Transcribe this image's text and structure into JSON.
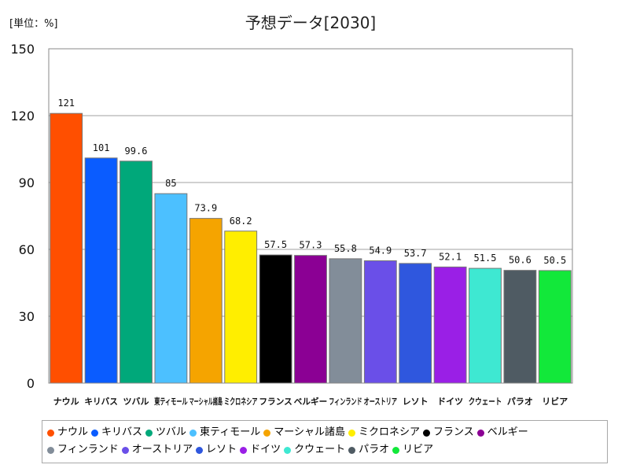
{
  "chart_data": {
    "type": "bar",
    "title": "予想データ[2030]",
    "unit_label": "[単位：%]",
    "xlabel": "",
    "ylabel": "",
    "ylim": [
      0,
      150
    ],
    "yticks": [
      0,
      30,
      60,
      90,
      120,
      150
    ],
    "grid": true,
    "legend_position": "bottom",
    "categories": [
      "ナウル",
      "キリバス",
      "ツバル",
      "東ティモール",
      "マーシャル諸島",
      "ミクロネシア",
      "フランス",
      "ベルギー",
      "フィンランド",
      "オーストリア",
      "レソト",
      "ドイツ",
      "クウェート",
      "パラオ",
      "リビア"
    ],
    "values": [
      121,
      101,
      99.6,
      85,
      73.9,
      68.2,
      57.5,
      57.3,
      55.8,
      54.9,
      53.7,
      52.1,
      51.5,
      50.6,
      50.5
    ],
    "value_labels": [
      "121",
      "101",
      "99.6",
      "85",
      "73.9",
      "68.2",
      "57.5",
      "57.3",
      "55.8",
      "54.9",
      "53.7",
      "52.1",
      "51.5",
      "50.6",
      "50.5"
    ],
    "colors": [
      "#ff4f00",
      "#0a5cff",
      "#00a87a",
      "#4cc0ff",
      "#f5a400",
      "#ffee00",
      "#000000",
      "#8b0094",
      "#828d99",
      "#6a4fe8",
      "#2f57de",
      "#9a1fe6",
      "#3ee8d2",
      "#4f5b63",
      "#12e83a"
    ]
  }
}
